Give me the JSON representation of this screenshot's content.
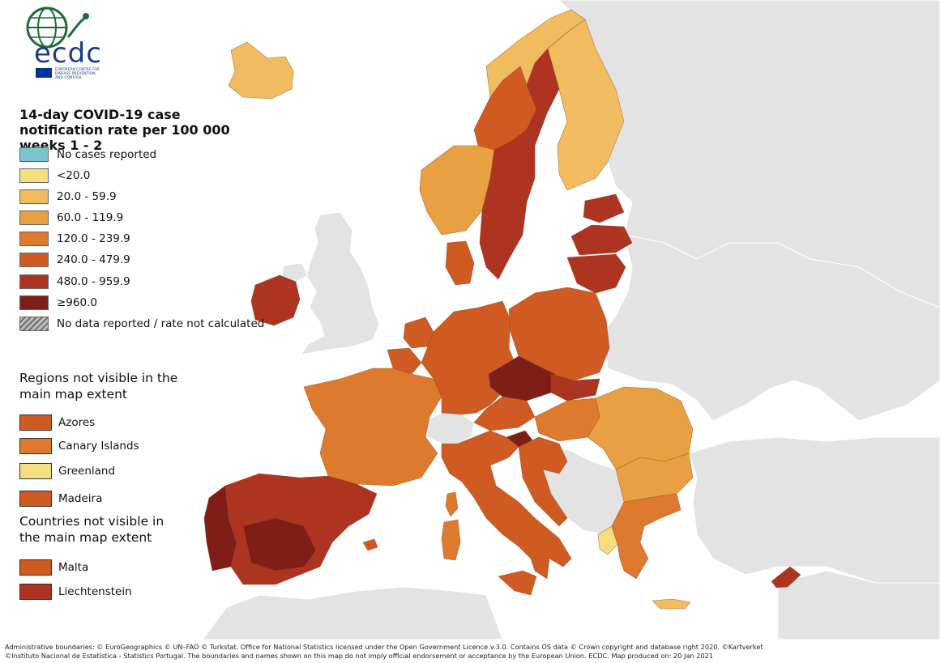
{
  "logo": {
    "wordmark": "ecdc",
    "org_name_lines": [
      "EUROPEAN CENTRE FOR",
      "DISEASE PREVENTION",
      "AND CONTROL"
    ],
    "colors": {
      "globe": "#1e6b35",
      "text": "#1b3a8c",
      "flag": "#003399"
    }
  },
  "legend": {
    "title": "14-day COVID-19 case notification rate per 100 000 weeks 1 - 2",
    "classes": [
      {
        "label": "No cases reported",
        "color": "#7bc4cb"
      },
      {
        "label": "<20.0",
        "color": "#f5de7f"
      },
      {
        "label": "20.0 - 59.9",
        "color": "#f0bc5f"
      },
      {
        "label": "60.0 - 119.9",
        "color": "#e8a043"
      },
      {
        "label": "120.0 - 239.9",
        "color": "#de7a2e"
      },
      {
        "label": "240.0 - 479.9",
        "color": "#cf5a22"
      },
      {
        "label": "480.0 - 959.9",
        "color": "#ad3420"
      },
      {
        "label": "≥960.0",
        "color": "#7f1d17"
      },
      {
        "label": "No data reported / rate not calculated",
        "pattern": "hatched"
      }
    ]
  },
  "regions_not_visible": {
    "title": "Regions not visible in the main map extent",
    "items": [
      {
        "label": "Azores",
        "color": "#cf5a22"
      },
      {
        "label": "Canary Islands",
        "color": "#de7a2e"
      },
      {
        "label": "Greenland",
        "color": "#f5de7f"
      },
      {
        "label": "Madeira",
        "color": "#cf5a22"
      }
    ]
  },
  "countries_not_visible": {
    "title": "Countries not visible in the main map extent",
    "items": [
      {
        "label": "Malta",
        "color": "#cf5a22"
      },
      {
        "label": "Liechtenstein",
        "color": "#ad3420"
      }
    ]
  },
  "credits": [
    "Administrative boundaries: © EuroGeographics © UN–FAO © Turkstat. Office for National Statistics licensed under the Open Government Licence v.3.0. Contains OS data © Crown copyright and database right 2020. ©Kartverket",
    "©Instituto Nacional de Estatística - Statistics Portugal. The boundaries and names shown on this map do not imply official endorsement or acceptance by the European Union. ECDC. Map produced on: 20 Jan 2021"
  ],
  "map_colors": {
    "non_eu_land": "#e3e3e3",
    "sea": "#ffffff",
    "region_border": "#8a4a2a"
  }
}
